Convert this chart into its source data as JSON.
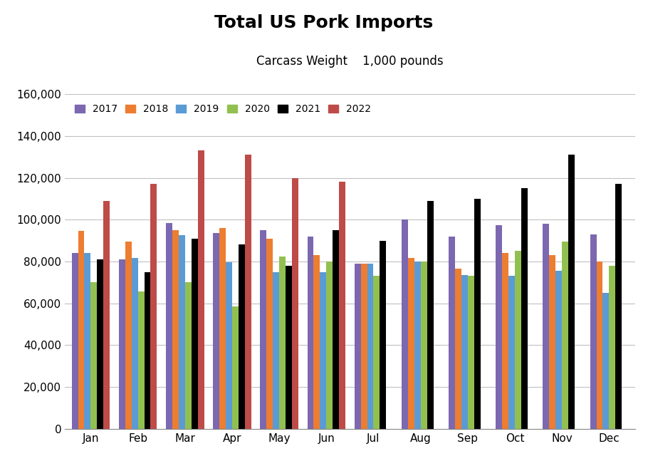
{
  "title": "Total US Pork Imports",
  "subtitle": "Carcass Weight    1,000 pounds",
  "months": [
    "Jan",
    "Feb",
    "Mar",
    "Apr",
    "May",
    "Jun",
    "Jul",
    "Aug",
    "Sep",
    "Oct",
    "Nov",
    "Dec"
  ],
  "years": [
    "2017",
    "2018",
    "2019",
    "2020",
    "2021",
    "2022"
  ],
  "colors": {
    "2017": "#7B68B0",
    "2018": "#ED7D31",
    "2019": "#5B9BD5",
    "2020": "#92C050",
    "2021": "#000000",
    "2022": "#BE4B48"
  },
  "data": {
    "2017": [
      84000,
      81000,
      98500,
      93500,
      95000,
      92000,
      79000,
      100000,
      92000,
      97500,
      98000,
      93000
    ],
    "2018": [
      94500,
      89500,
      95000,
      96000,
      91000,
      83000,
      79000,
      81500,
      76500,
      84000,
      83000,
      80000
    ],
    "2019": [
      84000,
      81500,
      92500,
      79500,
      75000,
      75000,
      79000,
      80000,
      73500,
      73000,
      75500,
      65000
    ],
    "2020": [
      70000,
      65500,
      70000,
      58500,
      82500,
      80000,
      73000,
      80000,
      73000,
      85000,
      89500,
      78000
    ],
    "2021": [
      81000,
      75000,
      91000,
      88000,
      78000,
      95000,
      90000,
      109000,
      110000,
      115000,
      131000,
      117000
    ],
    "2022": [
      109000,
      117000,
      133000,
      131000,
      120000,
      118000,
      null,
      null,
      null,
      null,
      null,
      null
    ]
  },
  "ylim": [
    0,
    160000
  ],
  "yticks": [
    0,
    20000,
    40000,
    60000,
    80000,
    100000,
    120000,
    140000,
    160000
  ],
  "background_color": "#FFFFFF",
  "grid_color": "#C0C0C0",
  "title_fontsize": 18,
  "subtitle_fontsize": 12,
  "tick_fontsize": 11,
  "legend_fontsize": 10
}
